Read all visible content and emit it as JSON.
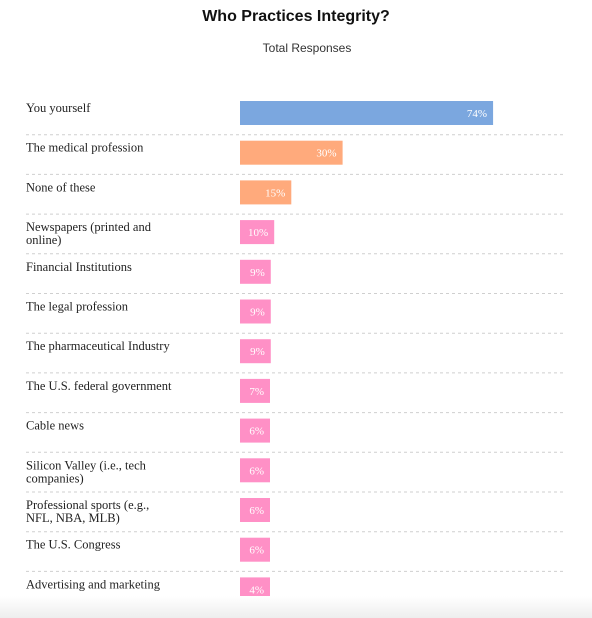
{
  "chart_data": {
    "type": "bar",
    "orientation": "horizontal",
    "title": "Who Practices Integrity?",
    "subtitle": "Total Responses",
    "categories": [
      "You yourself",
      "The medical profession",
      "None of these",
      "Newspapers (printed and online)",
      "Financial Institutions",
      "The legal profession",
      "The pharmaceutical Industry",
      "The U.S. federal government",
      "Cable news",
      "Silicon Valley (i.e., tech companies)",
      "Professional sports (e.g., NFL, NBA, MLB)",
      "The U.S. Congress",
      "Advertising and marketing"
    ],
    "values": [
      74,
      30,
      15,
      10,
      9,
      9,
      9,
      7,
      6,
      6,
      6,
      6,
      4
    ],
    "value_labels": [
      "74%",
      "30%",
      "15%",
      "10%",
      "9%",
      "9%",
      "9%",
      "7%",
      "6%",
      "6%",
      "6%",
      "6%",
      "4%"
    ],
    "bar_colors": [
      "#7ba7df",
      "#ffaa7c",
      "#ffaa7c",
      "#ff90c6",
      "#ff90c6",
      "#ff90c6",
      "#ff90c6",
      "#ff90c6",
      "#ff90c6",
      "#ff90c6",
      "#ff90c6",
      "#ff90c6",
      "#ff90c6"
    ],
    "xlim": [
      0,
      100
    ],
    "grid": false,
    "legend": "none"
  }
}
